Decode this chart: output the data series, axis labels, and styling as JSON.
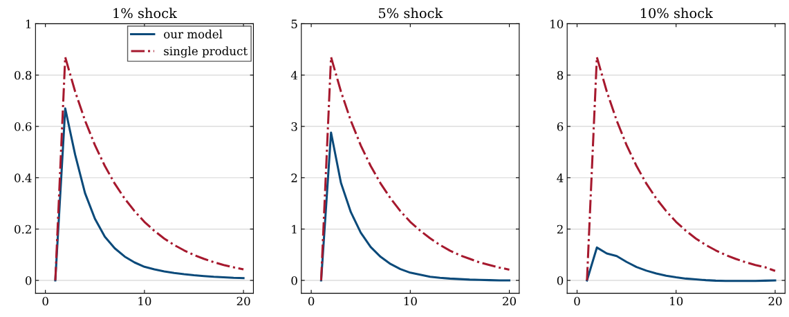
{
  "chart_data": [
    {
      "type": "line",
      "title": "1% shock",
      "xlim": [
        -1,
        21
      ],
      "xticks": [
        0,
        10,
        20
      ],
      "ylim": [
        -0.05,
        1
      ],
      "yticks": [
        0,
        0.2,
        0.4,
        0.6,
        0.8,
        1
      ],
      "grid": "y",
      "legend": "top right",
      "x": [
        1,
        2,
        3,
        4,
        5,
        6,
        7,
        8,
        9,
        10,
        11,
        12,
        13,
        14,
        15,
        16,
        17,
        18,
        19,
        20
      ],
      "series": [
        {
          "name": "our model",
          "color": "#0b4a7a",
          "line_style": "solid",
          "values": [
            0,
            0.67,
            0.49,
            0.34,
            0.24,
            0.17,
            0.125,
            0.093,
            0.07,
            0.053,
            0.043,
            0.035,
            0.029,
            0.024,
            0.02,
            0.017,
            0.014,
            0.012,
            0.01,
            0.009
          ]
        },
        {
          "name": "single product",
          "color": "#a6192e",
          "line_style": "dashdot",
          "values": [
            0,
            0.87,
            0.736,
            0.623,
            0.527,
            0.446,
            0.377,
            0.319,
            0.27,
            0.228,
            0.193,
            0.163,
            0.138,
            0.117,
            0.099,
            0.084,
            0.071,
            0.06,
            0.051,
            0.043
          ]
        }
      ]
    },
    {
      "type": "line",
      "title": "5% shock",
      "xlim": [
        -1,
        21
      ],
      "xticks": [
        0,
        10,
        20
      ],
      "ylim": [
        -0.25,
        5
      ],
      "yticks": [
        0,
        1,
        2,
        3,
        4,
        5
      ],
      "grid": "y",
      "x": [
        1,
        2,
        3,
        4,
        5,
        6,
        7,
        8,
        9,
        10,
        11,
        12,
        13,
        14,
        15,
        16,
        17,
        18,
        19,
        20
      ],
      "series": [
        {
          "color": "#0b4a7a",
          "line_style": "solid",
          "values": [
            0,
            2.88,
            1.9,
            1.33,
            0.93,
            0.65,
            0.46,
            0.32,
            0.22,
            0.15,
            0.11,
            0.07,
            0.05,
            0.035,
            0.025,
            0.015,
            0.01,
            0.005,
            0,
            0
          ]
        },
        {
          "color": "#a6192e",
          "line_style": "dashdot",
          "values": [
            0,
            4.35,
            3.68,
            3.11,
            2.63,
            2.23,
            1.89,
            1.6,
            1.35,
            1.14,
            0.97,
            0.82,
            0.69,
            0.58,
            0.49,
            0.42,
            0.35,
            0.3,
            0.25,
            0.21
          ]
        }
      ]
    },
    {
      "type": "line",
      "title": "10% shock",
      "xlim": [
        -1,
        21
      ],
      "xticks": [
        0,
        10,
        20
      ],
      "ylim": [
        -0.5,
        10
      ],
      "yticks": [
        0,
        2,
        4,
        6,
        8,
        10
      ],
      "grid": "y",
      "x": [
        1,
        2,
        3,
        4,
        5,
        6,
        7,
        8,
        9,
        10,
        11,
        12,
        13,
        14,
        15,
        16,
        17,
        18,
        19,
        20
      ],
      "series": [
        {
          "color": "#0b4a7a",
          "line_style": "solid",
          "values": [
            0,
            1.28,
            1.05,
            0.95,
            0.72,
            0.52,
            0.38,
            0.27,
            0.18,
            0.12,
            0.07,
            0.04,
            0.01,
            -0.01,
            -0.02,
            -0.02,
            -0.02,
            -0.02,
            -0.01,
            0
          ]
        },
        {
          "color": "#a6192e",
          "line_style": "dashdot",
          "values": [
            0,
            8.7,
            7.36,
            6.23,
            5.27,
            4.46,
            3.77,
            3.19,
            2.7,
            2.28,
            1.93,
            1.63,
            1.38,
            1.17,
            0.99,
            0.84,
            0.71,
            0.6,
            0.51,
            0.37
          ]
        }
      ]
    }
  ]
}
